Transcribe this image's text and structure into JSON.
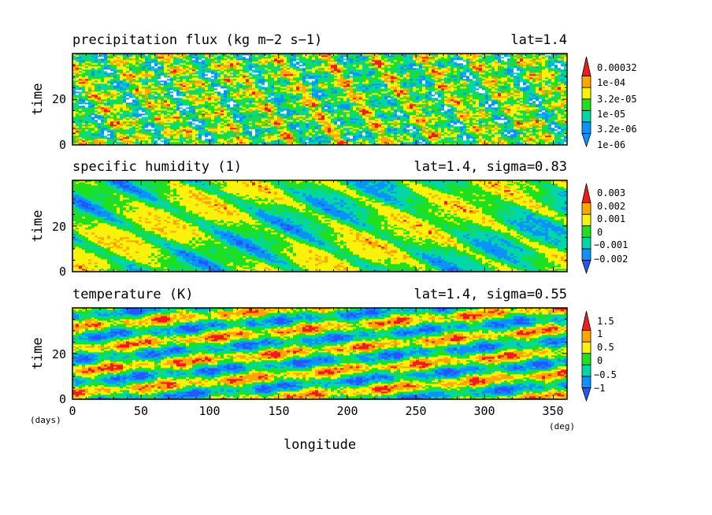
{
  "colors": {
    "blue": "#0a93ff",
    "cyan": "#00d6a6",
    "green": "#1fe01f",
    "yellow": "#fbf20c",
    "orange": "#ffa600",
    "red": "#ee1c1c",
    "deep_blue": "#2457ff",
    "white": "#ffffff",
    "frame": "#000000"
  },
  "x_axis": {
    "label": "longitude",
    "unit": "(deg)",
    "time_unit": "(days)",
    "range": [
      0,
      360
    ],
    "ticks": [
      "0",
      "50",
      "100",
      "150",
      "200",
      "250",
      "300",
      "350"
    ],
    "tick_values": [
      0,
      50,
      100,
      150,
      200,
      250,
      300,
      350
    ]
  },
  "chart_data": [
    {
      "type": "heatmap",
      "title": "precipitation flux (kg m−2 s−1)",
      "subtitle": "lat=1.4",
      "ylabel": "time",
      "xlim": [
        0,
        360
      ],
      "ylim": [
        0,
        40
      ],
      "yticks": [
        "0",
        "20"
      ],
      "ytick_values": [
        0,
        20
      ],
      "colorbar_labels": [
        "1e-06",
        "3.2e-06",
        "1e-05",
        "3.2e-05",
        "1e-04",
        "0.00032"
      ],
      "colorbar_levels": [
        1e-06,
        3.2e-06,
        1e-05,
        3.2e-05,
        0.0001,
        0.00032
      ]
    },
    {
      "type": "heatmap",
      "title": "specific humidity (1)",
      "subtitle": "lat=1.4, sigma=0.83",
      "ylabel": "time",
      "xlim": [
        0,
        360
      ],
      "ylim": [
        0,
        40
      ],
      "yticks": [
        "0",
        "20"
      ],
      "ytick_values": [
        0,
        20
      ],
      "colorbar_labels": [
        "−0.002",
        "−0.001",
        "0",
        "0.001",
        "0.002",
        "0.003"
      ],
      "colorbar_levels": [
        -0.002,
        -0.001,
        0,
        0.001,
        0.002,
        0.003
      ]
    },
    {
      "type": "heatmap",
      "title": "temperature (K)",
      "subtitle": "lat=1.4, sigma=0.55",
      "ylabel": "time",
      "xlim": [
        0,
        360
      ],
      "ylim": [
        0,
        40
      ],
      "yticks": [
        "0",
        "20"
      ],
      "ytick_values": [
        0,
        20
      ],
      "colorbar_labels": [
        "−1",
        "−0.5",
        "0",
        "0.5",
        "1",
        "1.5"
      ],
      "colorbar_levels": [
        -1,
        -0.5,
        0,
        0.5,
        1,
        1.5
      ]
    }
  ]
}
